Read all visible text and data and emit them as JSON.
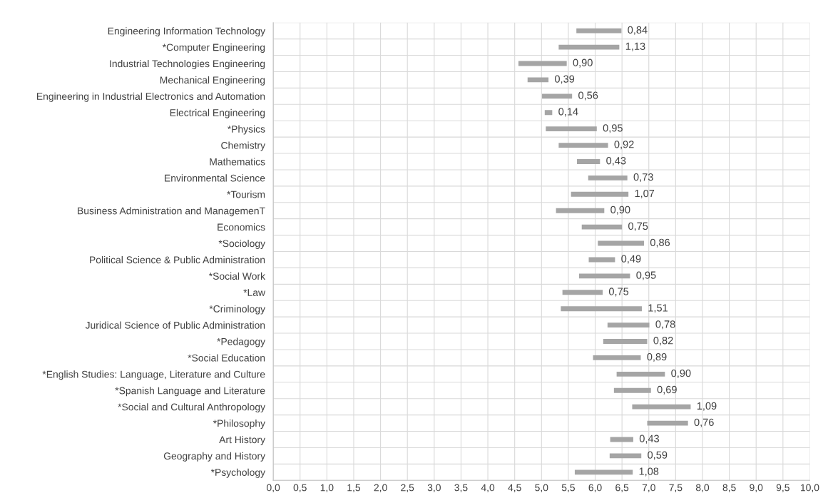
{
  "chart_data": {
    "type": "bar",
    "orientation": "horizontal",
    "color": "#a5a5a5",
    "categories": [
      "Engineering Information Technology",
      "*Computer Engineering",
      "Industrial Technologies Engineering",
      "Mechanical Engineering",
      "Engineering in Industrial Electronics and Automation",
      "Electrical Engineering",
      "*Physics",
      "Chemistry",
      "Mathematics",
      "Environmental Science",
      "*Tourism",
      "Business Administration and ManagemenT",
      "Economics",
      "*Sociology",
      "Political Science & Public Administration",
      "*Social Work",
      "*Law",
      "*Criminology",
      "Juridical Science of Public Administration",
      "*Pedagogy",
      "*Social Education",
      "*English Studies: Language, Literature and Culture",
      "*Spanish Language and Literature",
      "*Social and Cultural Anthropology",
      "*Philosophy",
      "Art History",
      "Geography and History",
      "*Psychology"
    ],
    "base": [
      5.65,
      5.32,
      4.57,
      4.74,
      5.01,
      5.06,
      5.08,
      5.32,
      5.66,
      5.87,
      5.55,
      5.27,
      5.75,
      6.05,
      5.88,
      5.7,
      5.39,
      5.36,
      6.23,
      6.15,
      5.96,
      6.4,
      6.35,
      6.69,
      6.97,
      6.28,
      6.27,
      5.62
    ],
    "values": [
      0.84,
      1.13,
      0.9,
      0.39,
      0.56,
      0.14,
      0.95,
      0.92,
      0.43,
      0.73,
      1.07,
      0.9,
      0.75,
      0.86,
      0.49,
      0.95,
      0.75,
      1.51,
      0.78,
      0.82,
      0.89,
      0.9,
      0.69,
      1.09,
      0.76,
      0.43,
      0.59,
      1.08
    ],
    "value_labels": [
      "0,84",
      "1,13",
      "0,90",
      "0,39",
      "0,56",
      "0,14",
      "0,95",
      "0,92",
      "0,43",
      "0,73",
      "1,07",
      "0,90",
      "0,75",
      "0,86",
      "0,49",
      "0,95",
      "0,75",
      "1,51",
      "0,78",
      "0,82",
      "0,89",
      "0,90",
      "0,69",
      "1,09",
      "0,76",
      "0,43",
      "0,59",
      "1,08"
    ],
    "xlim": [
      0,
      10
    ],
    "xticks": [
      {
        "value": 0,
        "label": "0,0"
      },
      {
        "value": 0.5,
        "label": "0,5"
      },
      {
        "value": 1,
        "label": "1,0"
      },
      {
        "value": 1.5,
        "label": "1,5"
      },
      {
        "value": 2,
        "label": "2,0"
      },
      {
        "value": 2.5,
        "label": "2,5"
      },
      {
        "value": 3,
        "label": "3,0"
      },
      {
        "value": 3.5,
        "label": "3,5"
      },
      {
        "value": 4,
        "label": "4,0"
      },
      {
        "value": 4.5,
        "label": "4,5"
      },
      {
        "value": 5,
        "label": "5,0"
      },
      {
        "value": 5.5,
        "label": "5,5"
      },
      {
        "value": 6,
        "label": "6,0"
      },
      {
        "value": 6.5,
        "label": "6,5"
      },
      {
        "value": 7,
        "label": "7,0"
      },
      {
        "value": 7.5,
        "label": "7,5"
      },
      {
        "value": 8,
        "label": "8,0"
      },
      {
        "value": 8.5,
        "label": "8,5"
      },
      {
        "value": 9,
        "label": "9,0"
      },
      {
        "value": 9.5,
        "label": "9,5"
      },
      {
        "value": 10,
        "label": "10,0"
      }
    ],
    "grid": true,
    "legend": false
  }
}
